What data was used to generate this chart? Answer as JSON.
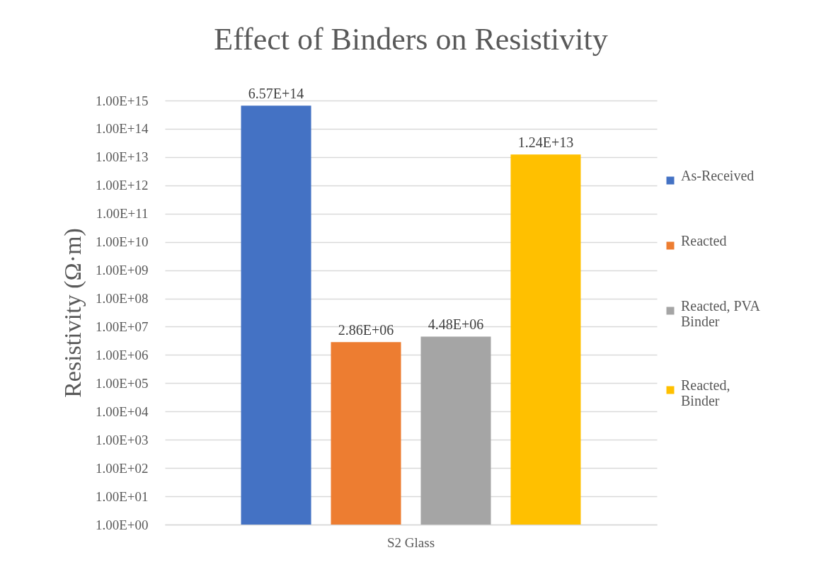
{
  "chart_data": {
    "type": "bar",
    "title": "Effect of Binders on Resistivity",
    "ylabel": "Resistivity (Ω·m)",
    "categories": [
      "S2 Glass"
    ],
    "series": [
      {
        "name": "As-Received",
        "color": "#4472c4",
        "values": [
          657000000000000.0
        ],
        "value_labels": [
          "6.57E+14"
        ]
      },
      {
        "name": "Reacted",
        "color": "#ed7d31",
        "values": [
          2860000.0
        ],
        "value_labels": [
          "2.86E+06"
        ]
      },
      {
        "name": "Reacted, PVA Binder",
        "color": "#a5a5a5",
        "values": [
          4480000.0
        ],
        "value_labels": [
          "4.48E+06"
        ]
      },
      {
        "name": "Reacted, Binder",
        "color": "#ffc000",
        "values": [
          12400000000000.0
        ],
        "value_labels": [
          "1.24E+13"
        ]
      }
    ],
    "log": true,
    "ylim": [
      1,
      1000000000000000.0
    ],
    "yticks": [
      {
        "value": 1,
        "label": "1.00E+00"
      },
      {
        "value": 10,
        "label": "1.00E+01"
      },
      {
        "value": 100,
        "label": "1.00E+02"
      },
      {
        "value": 1000,
        "label": "1.00E+03"
      },
      {
        "value": 10000.0,
        "label": "1.00E+04"
      },
      {
        "value": 100000.0,
        "label": "1.00E+05"
      },
      {
        "value": 1000000.0,
        "label": "1.00E+06"
      },
      {
        "value": 10000000.0,
        "label": "1.00E+07"
      },
      {
        "value": 100000000.0,
        "label": "1.00E+08"
      },
      {
        "value": 1000000000.0,
        "label": "1.00E+09"
      },
      {
        "value": 10000000000.0,
        "label": "1.00E+10"
      },
      {
        "value": 100000000000.0,
        "label": "1.00E+11"
      },
      {
        "value": 1000000000000.0,
        "label": "1.00E+12"
      },
      {
        "value": 10000000000000.0,
        "label": "1.00E+13"
      },
      {
        "value": 100000000000000.0,
        "label": "1.00E+14"
      },
      {
        "value": 1000000000000000.0,
        "label": "1.00E+15"
      }
    ],
    "grid": "y",
    "legend": "right"
  }
}
